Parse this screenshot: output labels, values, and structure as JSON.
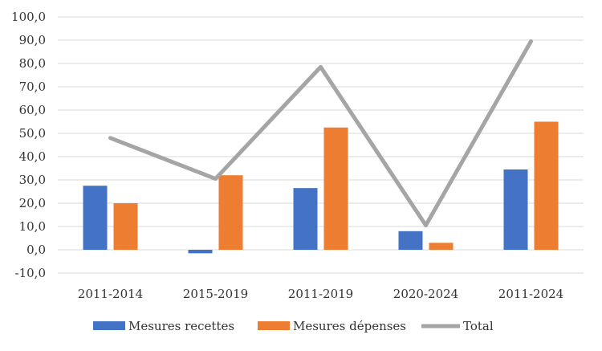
{
  "chart_data": {
    "type": "bar",
    "categories": [
      "2011-2014",
      "2015-2019",
      "2011-2019",
      "2020-2024",
      "2011-2024"
    ],
    "series": [
      {
        "name": "Mesures recettes",
        "kind": "bar",
        "color": "#4472C4",
        "values": [
          27.5,
          -1.5,
          26.5,
          8.0,
          34.5
        ]
      },
      {
        "name": "Mesures dépenses",
        "kind": "bar",
        "color": "#ED7D31",
        "values": [
          20.0,
          32.0,
          52.5,
          3.0,
          55.0
        ]
      },
      {
        "name": "Total",
        "kind": "line",
        "color": "#A5A5A5",
        "values": [
          48.0,
          30.5,
          78.5,
          10.5,
          89.5
        ]
      }
    ],
    "ylim": [
      -10,
      100
    ],
    "yticks": [
      "100,0",
      "90,0",
      "80,0",
      "70,0",
      "60,0",
      "50,0",
      "40,0",
      "30,0",
      "20,0",
      "10,0",
      "0,0",
      "-10,0"
    ],
    "grid": true,
    "legend": "bottom"
  }
}
